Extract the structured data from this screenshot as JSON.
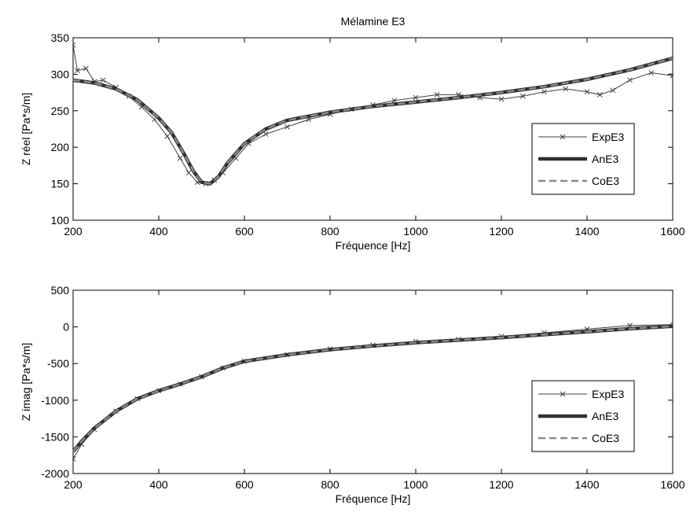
{
  "chart_data": [
    {
      "type": "line",
      "title": "Mélamine E3",
      "xlabel": "Fréquence [Hz]",
      "ylabel": "Z réel [Pa*s/m]",
      "xlim": [
        200,
        1600
      ],
      "ylim": [
        100,
        350
      ],
      "xticks": [
        "200",
        "400",
        "600",
        "800",
        "1000",
        "1200",
        "1400",
        "1600"
      ],
      "yticks": [
        "100",
        "150",
        "200",
        "250",
        "300",
        "350"
      ],
      "legend_position": "bottom-right",
      "series": [
        {
          "name": "ExpE3",
          "style": "thin line with x markers",
          "color": "#404040",
          "x": [
            200,
            210,
            230,
            250,
            270,
            300,
            330,
            360,
            390,
            420,
            450,
            470,
            490,
            510,
            530,
            550,
            580,
            610,
            650,
            700,
            750,
            800,
            850,
            900,
            950,
            1000,
            1050,
            1100,
            1150,
            1200,
            1250,
            1300,
            1350,
            1400,
            1430,
            1460,
            1500,
            1550,
            1600
          ],
          "y": [
            340,
            305,
            308,
            290,
            292,
            282,
            270,
            255,
            238,
            215,
            185,
            165,
            152,
            150,
            155,
            165,
            185,
            205,
            218,
            228,
            238,
            245,
            252,
            258,
            264,
            268,
            272,
            272,
            268,
            266,
            270,
            276,
            280,
            276,
            272,
            278,
            292,
            302,
            298
          ]
        },
        {
          "name": "AnE3",
          "style": "thick solid line",
          "color": "#303030",
          "x": [
            200,
            250,
            300,
            350,
            400,
            430,
            460,
            480,
            500,
            520,
            540,
            560,
            600,
            650,
            700,
            800,
            900,
            1000,
            1100,
            1200,
            1300,
            1400,
            1500,
            1600
          ],
          "y": [
            292,
            288,
            280,
            265,
            240,
            220,
            190,
            168,
            152,
            150,
            160,
            178,
            205,
            225,
            237,
            248,
            256,
            262,
            268,
            275,
            283,
            293,
            306,
            322
          ]
        },
        {
          "name": "CoE3",
          "style": "dashed line",
          "color": "#8a8a8a",
          "x": [
            200,
            250,
            300,
            350,
            400,
            430,
            460,
            480,
            500,
            520,
            540,
            560,
            600,
            650,
            700,
            800,
            900,
            1000,
            1100,
            1200,
            1300,
            1400,
            1500,
            1600
          ],
          "y": [
            292,
            288,
            280,
            265,
            240,
            220,
            190,
            168,
            152,
            150,
            160,
            178,
            205,
            225,
            237,
            248,
            256,
            262,
            268,
            275,
            283,
            293,
            306,
            322
          ]
        }
      ]
    },
    {
      "type": "line",
      "title": "",
      "xlabel": "Fréquence [Hz]",
      "ylabel": "Z imag [Pa*s/m]",
      "xlim": [
        200,
        1600
      ],
      "ylim": [
        -2000,
        500
      ],
      "xticks": [
        "200",
        "400",
        "600",
        "800",
        "1000",
        "1200",
        "1400",
        "1600"
      ],
      "yticks": [
        "-2000",
        "-1500",
        "-1000",
        "-500",
        "0",
        "500"
      ],
      "legend_position": "bottom-right",
      "series": [
        {
          "name": "ExpE3",
          "style": "thin line with x markers",
          "color": "#404040",
          "x": [
            200,
            220,
            250,
            300,
            350,
            400,
            450,
            500,
            550,
            600,
            700,
            800,
            900,
            1000,
            1100,
            1200,
            1300,
            1400,
            1500,
            1600
          ],
          "y": [
            -1800,
            -1600,
            -1400,
            -1150,
            -980,
            -870,
            -780,
            -680,
            -560,
            -470,
            -380,
            -300,
            -250,
            -200,
            -170,
            -130,
            -80,
            -30,
            20,
            30
          ]
        },
        {
          "name": "AnE3",
          "style": "thick solid line",
          "color": "#303030",
          "x": [
            200,
            220,
            250,
            300,
            350,
            400,
            450,
            500,
            550,
            600,
            700,
            800,
            900,
            1000,
            1100,
            1200,
            1300,
            1400,
            1500,
            1600
          ],
          "y": [
            -1700,
            -1560,
            -1380,
            -1150,
            -980,
            -870,
            -780,
            -680,
            -560,
            -470,
            -380,
            -310,
            -260,
            -215,
            -180,
            -145,
            -105,
            -65,
            -25,
            10
          ]
        },
        {
          "name": "CoE3",
          "style": "dashed line",
          "color": "#8a8a8a",
          "x": [
            200,
            220,
            250,
            300,
            350,
            400,
            450,
            500,
            550,
            600,
            700,
            800,
            900,
            1000,
            1100,
            1200,
            1300,
            1400,
            1500,
            1600
          ],
          "y": [
            -1700,
            -1560,
            -1380,
            -1150,
            -980,
            -870,
            -780,
            -680,
            -560,
            -470,
            -380,
            -310,
            -260,
            -215,
            -180,
            -145,
            -105,
            -65,
            -25,
            10
          ]
        }
      ]
    }
  ]
}
